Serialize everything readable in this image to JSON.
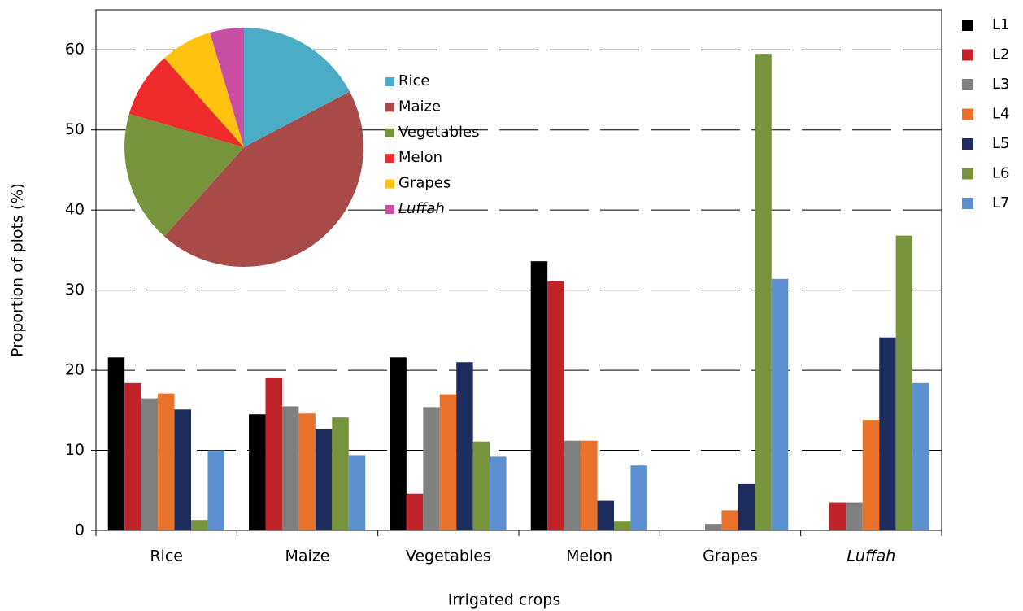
{
  "chart_data": [
    {
      "type": "bar",
      "x_label": "Irrigated crops",
      "y_label": "Proportion of plots (%)",
      "categories": [
        "Rice",
        "Maize",
        "Vegetables",
        "Melon",
        "Grapes",
        "Luffah"
      ],
      "series": [
        {
          "name": "L1",
          "color": "#000000",
          "values": [
            21.6,
            14.5,
            21.6,
            33.6,
            0,
            0
          ]
        },
        {
          "name": "L2",
          "color": "#c0232a",
          "values": [
            18.4,
            19.1,
            4.6,
            31.1,
            0,
            3.5
          ]
        },
        {
          "name": "L3",
          "color": "#808080",
          "values": [
            16.5,
            15.5,
            15.4,
            11.2,
            0.8,
            3.5
          ]
        },
        {
          "name": "L4",
          "color": "#e8722a",
          "values": [
            17.1,
            14.6,
            17.0,
            11.2,
            2.5,
            13.8
          ]
        },
        {
          "name": "L5",
          "color": "#1f2d5e",
          "values": [
            15.1,
            12.7,
            21.0,
            3.7,
            5.8,
            24.1
          ]
        },
        {
          "name": "L6",
          "color": "#77933c",
          "values": [
            1.3,
            14.1,
            11.1,
            1.2,
            59.5,
            36.8
          ]
        },
        {
          "name": "L7",
          "color": "#5b8fd0",
          "values": [
            10.0,
            9.4,
            9.2,
            8.1,
            31.4,
            18.4
          ]
        }
      ],
      "ylim": [
        0,
        65
      ],
      "yticks": [
        0,
        10,
        20,
        30,
        40,
        50,
        60
      ],
      "grid": true,
      "legend": "right"
    },
    {
      "type": "pie",
      "categories": [
        "Rice",
        "Maize",
        "Vegetables",
        "Melon",
        "Grapes",
        "Luffah"
      ],
      "values": [
        17.3,
        44.3,
        17.9,
        8.9,
        7.0,
        4.6
      ],
      "colors": [
        "#4bacc6",
        "#a84a48",
        "#77933c",
        "#ee2a2a",
        "#ffc20e",
        "#c84fa4"
      ]
    }
  ]
}
